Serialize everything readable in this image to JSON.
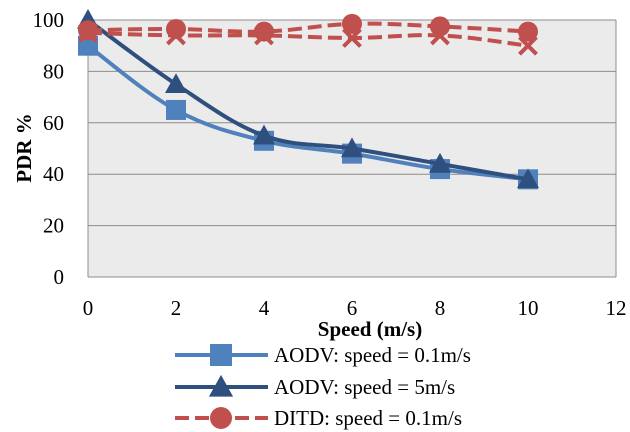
{
  "chart_data": {
    "type": "line",
    "xlabel": "Speed (m/s)",
    "ylabel": "PDR %",
    "xlim": [
      0,
      12
    ],
    "ylim": [
      0,
      100
    ],
    "x_ticks": [
      "0",
      "2",
      "4",
      "6",
      "8",
      "10",
      "12"
    ],
    "y_ticks": [
      "0",
      "20",
      "40",
      "60",
      "80",
      "100"
    ],
    "grid": "horizontal",
    "legend_position": "bottom",
    "x": [
      0,
      2,
      4,
      6,
      8,
      10
    ],
    "series": [
      {
        "name": "AODV: speed = 0.1m/s",
        "values": [
          90,
          65,
          53,
          48,
          42,
          38
        ],
        "color": "#4F81BD",
        "marker": "square",
        "dash": "solid"
      },
      {
        "name": "AODV: speed = 5m/s",
        "values": [
          100,
          75,
          55,
          50,
          44,
          38
        ],
        "color": "#2F4F7F",
        "marker": "triangle",
        "dash": "solid"
      },
      {
        "name": "DITD: speed = 0.1m/s",
        "values": [
          96,
          96.5,
          95.5,
          98.5,
          97.5,
          95.5
        ],
        "color": "#C0504D",
        "marker": "circle",
        "dash": "dashed"
      },
      {
        "name": "",
        "values": [
          95,
          94,
          94,
          93,
          94,
          90
        ],
        "color": "#C0504D",
        "marker": "x",
        "dash": "dashed"
      }
    ]
  }
}
